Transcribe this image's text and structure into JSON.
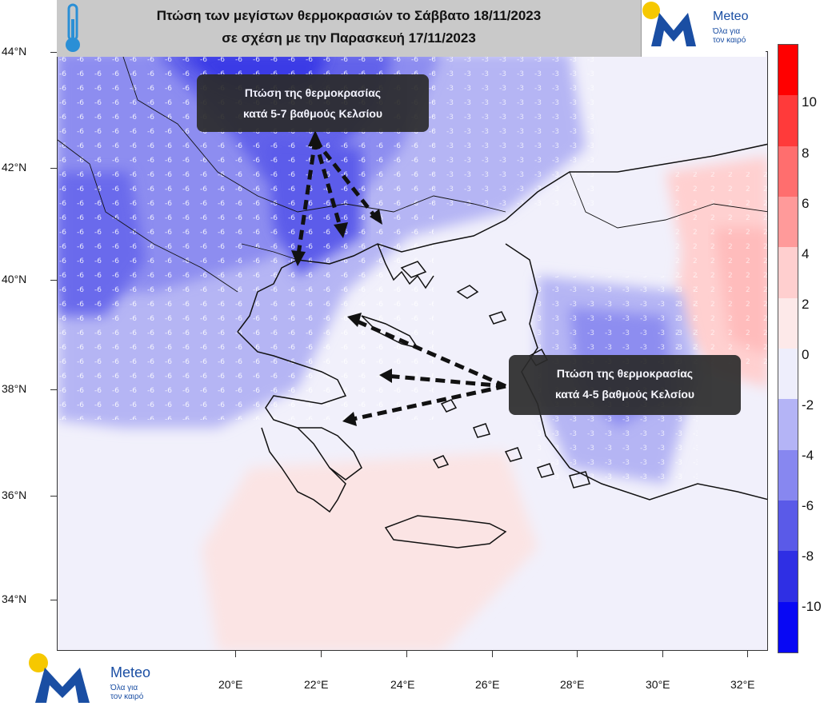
{
  "title": {
    "line1": "Πτώση των μεγίστων θερμοκρασιών το Σάββατο 18/11/2023",
    "line2": "σε σχέση με την Παρασκευή 17/11/2023"
  },
  "logo": {
    "word": "Meteo",
    "tagline1": "Όλα για",
    "tagline2": "τον καιρό"
  },
  "axes": {
    "lat_labels": [
      "44°N",
      "42°N",
      "40°N",
      "38°N",
      "36°N",
      "34°N"
    ],
    "lon_labels": [
      "20°E",
      "22°E",
      "24°E",
      "26°E",
      "28°E",
      "30°E",
      "32°E"
    ]
  },
  "callouts": {
    "north": {
      "line1": "Πτώση της θερμοκρασίας",
      "line2": "κατά 5-7 βαθμούς Κελσίου"
    },
    "south": {
      "line1": "Πτώση της θερμοκρασίας",
      "line2": "κατά 4-5 βαθμούς Κελσίου"
    }
  },
  "colorbar": {
    "labels": [
      "10",
      "8",
      "6",
      "4",
      "2",
      "0",
      "-2",
      "-4",
      "-6",
      "-8",
      "-10"
    ],
    "colors": [
      "#ff0000",
      "#ff3a3a",
      "#ff6e6e",
      "#ff9a9a",
      "#ffcfcf",
      "#fde9e9",
      "#eeeefc",
      "#b4b4f6",
      "#8787f0",
      "#5a5ae8",
      "#2f2fe4",
      "#0808f4"
    ]
  },
  "icons": {
    "thermometer": "thermometer-icon",
    "logo_mark": "meteo-m-logo"
  }
}
